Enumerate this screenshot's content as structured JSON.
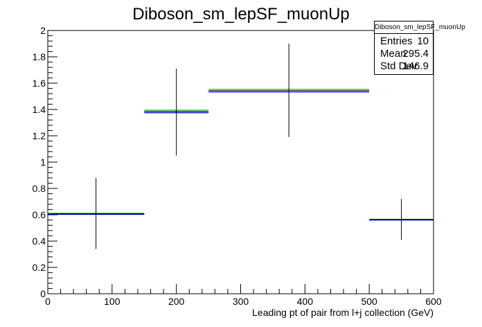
{
  "chart_data": {
    "type": "histogram",
    "title": "Diboson_sm_lepSF_muonUp",
    "xlabel": "Leading pt of pair from l+j collection (GeV)",
    "ylabel": "",
    "xlim": [
      0,
      600
    ],
    "ylim": [
      0,
      2.0
    ],
    "x_ticks": [
      "0",
      "100",
      "200",
      "300",
      "400",
      "500",
      "600"
    ],
    "y_ticks": [
      "0",
      "0.2",
      "0.4",
      "0.6",
      "0.8",
      "1",
      "1.2",
      "1.4",
      "1.6",
      "1.8",
      "2"
    ],
    "bins": [
      {
        "low": 0,
        "high": 150,
        "center": 75,
        "value": 0.607,
        "err_low": 0.34,
        "err_high": 0.88,
        "value_blue": 0.603,
        "value_green": 0.611
      },
      {
        "low": 150,
        "high": 250,
        "center": 200,
        "value": 1.385,
        "err_low": 1.05,
        "err_high": 1.71,
        "value_blue": 1.375,
        "value_green": 1.395
      },
      {
        "low": 250,
        "high": 500,
        "center": 375,
        "value": 1.543,
        "err_low": 1.19,
        "err_high": 1.9,
        "value_blue": 1.533,
        "value_green": 1.553
      },
      {
        "low": 500,
        "high": 600,
        "center": 550,
        "value": 0.563,
        "err_low": 0.41,
        "err_high": 0.72,
        "value_blue": 0.56,
        "value_green": 0.566
      }
    ],
    "colors": {
      "nominal": "#000000",
      "down": "#0000ff",
      "up": "#00cc00"
    },
    "stats": {
      "title": "Diboson_sm_lepSF_muonUp",
      "rows": [
        {
          "key": "Entries",
          "value": "10"
        },
        {
          "key": "Mean",
          "value": "295.4"
        },
        {
          "key": "Std Dev",
          "value": "146.9"
        }
      ]
    }
  }
}
